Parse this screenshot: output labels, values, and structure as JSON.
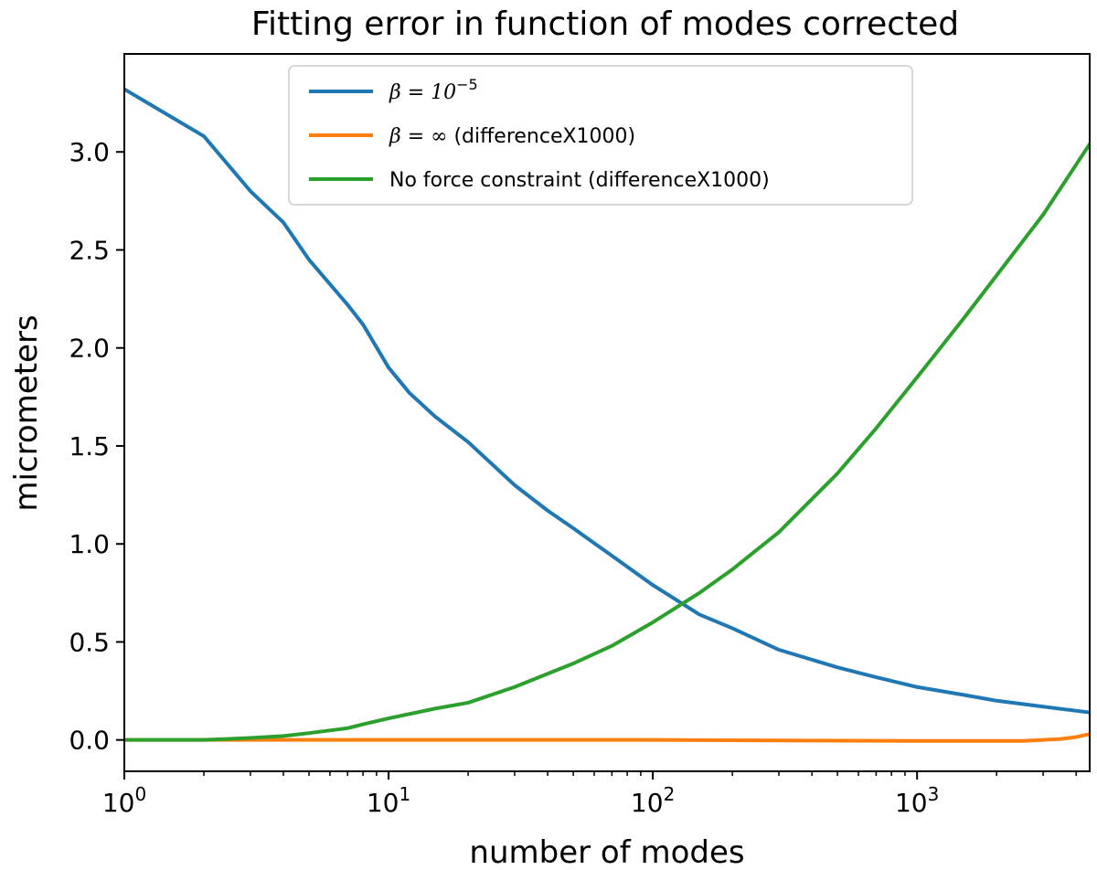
{
  "chart_data": {
    "type": "line",
    "title": "Fitting error in function of modes corrected",
    "xlabel": "number of modes",
    "ylabel": "micrometers",
    "xscale": "log",
    "xlim": [
      1,
      4500
    ],
    "ylim": [
      -0.16,
      3.5
    ],
    "xticks": [
      {
        "value": 1,
        "base": "10",
        "exp": "0"
      },
      {
        "value": 10,
        "base": "10",
        "exp": "1"
      },
      {
        "value": 100,
        "base": "10",
        "exp": "2"
      },
      {
        "value": 1000,
        "base": "10",
        "exp": "3"
      }
    ],
    "yticks": [
      {
        "value": 0.0,
        "label": "0.0"
      },
      {
        "value": 0.5,
        "label": "0.5"
      },
      {
        "value": 1.0,
        "label": "1.0"
      },
      {
        "value": 1.5,
        "label": "1.5"
      },
      {
        "value": 2.0,
        "label": "2.0"
      },
      {
        "value": 2.5,
        "label": "2.5"
      },
      {
        "value": 3.0,
        "label": "3.0"
      }
    ],
    "grid": false,
    "legend_position": "top-center",
    "series": [
      {
        "name": "β = 10⁻⁵",
        "legend": {
          "math": "β = 10",
          "sup": "−5",
          "text": ""
        },
        "color": "#1f77b4",
        "x": [
          1,
          2,
          3,
          4,
          5,
          7,
          8,
          10,
          12,
          15,
          20,
          30,
          40,
          50,
          70,
          100,
          150,
          200,
          300,
          500,
          700,
          1000,
          1500,
          2000,
          3000,
          4500
        ],
        "y": [
          3.32,
          3.08,
          2.8,
          2.64,
          2.45,
          2.22,
          2.12,
          1.9,
          1.77,
          1.65,
          1.52,
          1.3,
          1.17,
          1.08,
          0.94,
          0.79,
          0.64,
          0.57,
          0.46,
          0.37,
          0.32,
          0.27,
          0.23,
          0.2,
          0.17,
          0.14
        ]
      },
      {
        "name": "β = ∞ (differenceX1000)",
        "legend": {
          "math": "β = ∞",
          "sup": "",
          "text": " (differenceX1000)"
        },
        "color": "#ff7f0e",
        "x": [
          1,
          10,
          100,
          1000,
          2500,
          3500,
          4000,
          4500
        ],
        "y": [
          0.0,
          0.0,
          0.0,
          -0.005,
          -0.005,
          0.005,
          0.015,
          0.03
        ]
      },
      {
        "name": "No force constraint (differenceX1000)",
        "legend": {
          "math": "",
          "sup": "",
          "text": "No force constraint (differenceX1000)"
        },
        "color": "#2ca02c",
        "x": [
          1,
          2,
          3,
          4,
          5,
          7,
          8,
          10,
          15,
          20,
          30,
          50,
          70,
          100,
          150,
          200,
          300,
          500,
          700,
          1000,
          1500,
          2000,
          3000,
          4500
        ],
        "y": [
          0.0,
          0.0,
          0.01,
          0.02,
          0.035,
          0.06,
          0.08,
          0.11,
          0.16,
          0.19,
          0.27,
          0.39,
          0.48,
          0.6,
          0.75,
          0.87,
          1.06,
          1.36,
          1.59,
          1.85,
          2.15,
          2.37,
          2.68,
          3.04
        ]
      }
    ]
  }
}
